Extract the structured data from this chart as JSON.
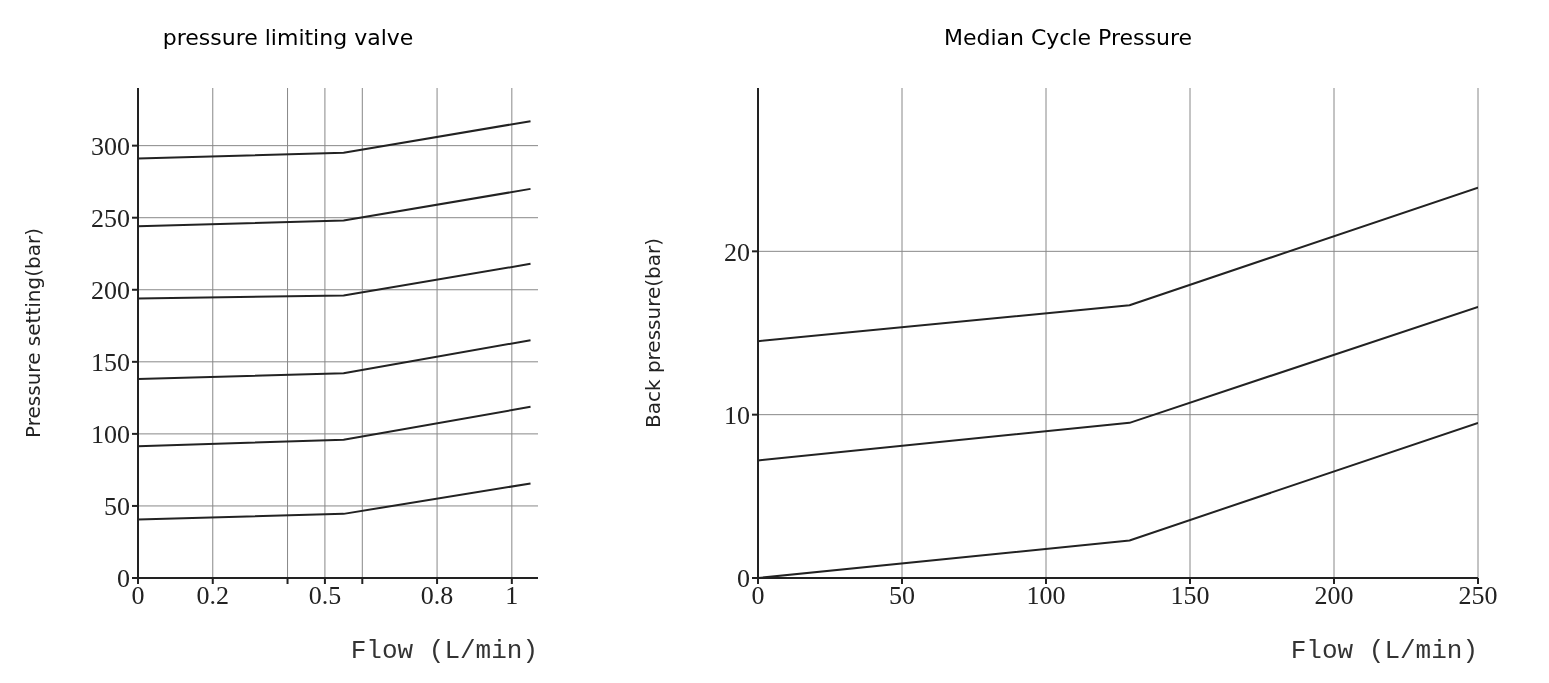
{
  "chart_data": [
    {
      "type": "line",
      "title": "pressure limiting valve",
      "xlabel": "Flow (L/min)",
      "ylabel": "Pressure setting(bar)",
      "xlim": [
        0,
        1.07
      ],
      "xticks": [
        0,
        0.2,
        {
          "value": 0.4,
          "label": null
        },
        0.5,
        {
          "value": 0.6,
          "label": null
        },
        0.8,
        1
      ],
      "ylim": [
        0,
        340
      ],
      "yticks": [
        0,
        50,
        100,
        150,
        200,
        250,
        300
      ],
      "grid": true,
      "marker": "none",
      "line_style": "solid",
      "x": [
        0,
        0.55,
        1.05
      ],
      "series": [
        {
          "color": "#222222",
          "values": [
            40.6,
            44.5,
            65.6
          ]
        },
        {
          "color": "#222222",
          "values": [
            91.4,
            96,
            118.8
          ]
        },
        {
          "color": "#222222",
          "values": [
            138,
            142,
            165
          ]
        },
        {
          "color": "#222222",
          "values": [
            194,
            196,
            218
          ]
        },
        {
          "color": "#222222",
          "values": [
            244,
            248,
            270
          ]
        },
        {
          "color": "#222222",
          "values": [
            291,
            295,
            317
          ]
        }
      ]
    },
    {
      "type": "line",
      "title": "Median Cycle Pressure",
      "xlabel": "Flow (L/min)",
      "ylabel": "Back pressure(bar)",
      "xlim": [
        0,
        250
      ],
      "xticks": [
        0,
        50,
        100,
        150,
        200,
        250
      ],
      "ylim": [
        0,
        30
      ],
      "yticks": [
        0,
        10,
        20
      ],
      "grid": true,
      "marker": "none",
      "line_style": "solid",
      "x": [
        0,
        129,
        250
      ],
      "series": [
        {
          "color": "#222222",
          "values": [
            14.5,
            16.7,
            23.9
          ]
        },
        {
          "color": "#222222",
          "values": [
            7.2,
            9.5,
            16.6
          ]
        },
        {
          "color": "#222222",
          "values": [
            0,
            2.3,
            9.5
          ]
        }
      ]
    }
  ]
}
